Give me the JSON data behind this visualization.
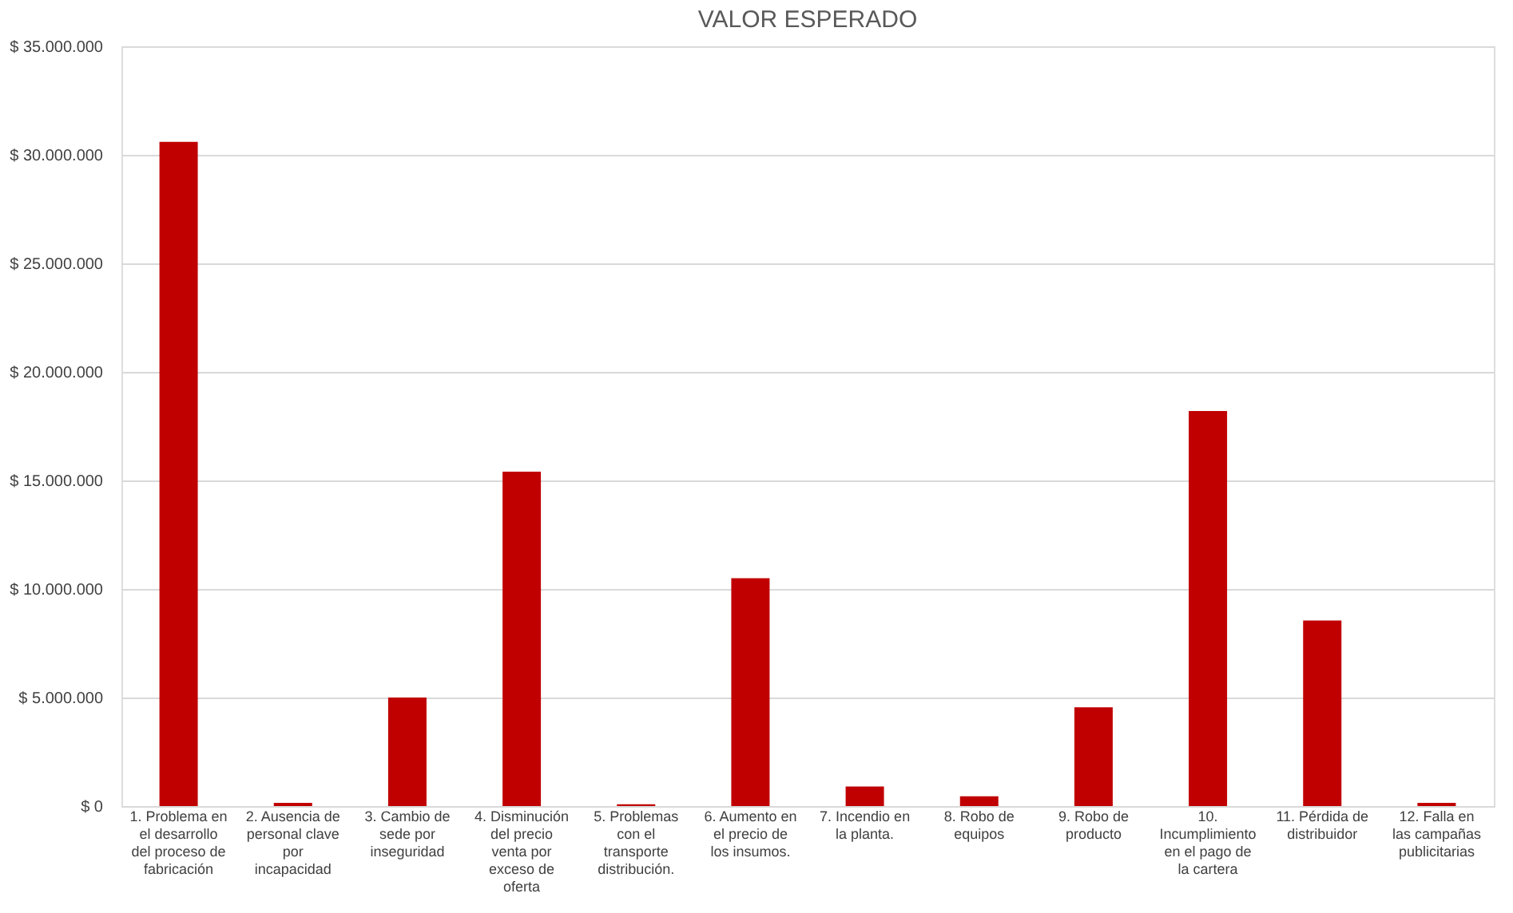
{
  "chart_data": {
    "type": "bar",
    "title": "VALOR ESPERADO",
    "categories": [
      "1. Problema en el desarrollo del proceso de fabricación",
      "2. Ausencia de personal clave por incapacidad",
      "3. Cambio de sede por inseguridad",
      "4. Disminución del precio venta por exceso de oferta",
      "5. Problemas con el transporte distribución.",
      "6. Aumento en el precio de los insumos.",
      "7. Incendio en la planta.",
      "8. Robo de equipos",
      "9. Robo de producto",
      "10. Incumplimiento en el pago de la cartera",
      "11. Pérdida de distribuidor",
      "12. Falla en las campañas publicitarias"
    ],
    "values": [
      30600000,
      150000,
      5000000,
      15400000,
      80000,
      10500000,
      900000,
      450000,
      4550000,
      18200000,
      8550000,
      150000
    ],
    "color": "#c00000",
    "ylim": [
      0,
      35000000
    ],
    "yticks": [
      {
        "value": 0,
        "label": "$ 0"
      },
      {
        "value": 5000000,
        "label": "$ 5.000.000"
      },
      {
        "value": 10000000,
        "label": "$ 10.000.000"
      },
      {
        "value": 15000000,
        "label": "$ 15.000.000"
      },
      {
        "value": 20000000,
        "label": "$ 20.000.000"
      },
      {
        "value": 25000000,
        "label": "$ 25.000.000"
      },
      {
        "value": 30000000,
        "label": "$ 30.000.000"
      },
      {
        "value": 35000000,
        "label": "$ 35.000.000"
      }
    ],
    "grid": "y"
  }
}
